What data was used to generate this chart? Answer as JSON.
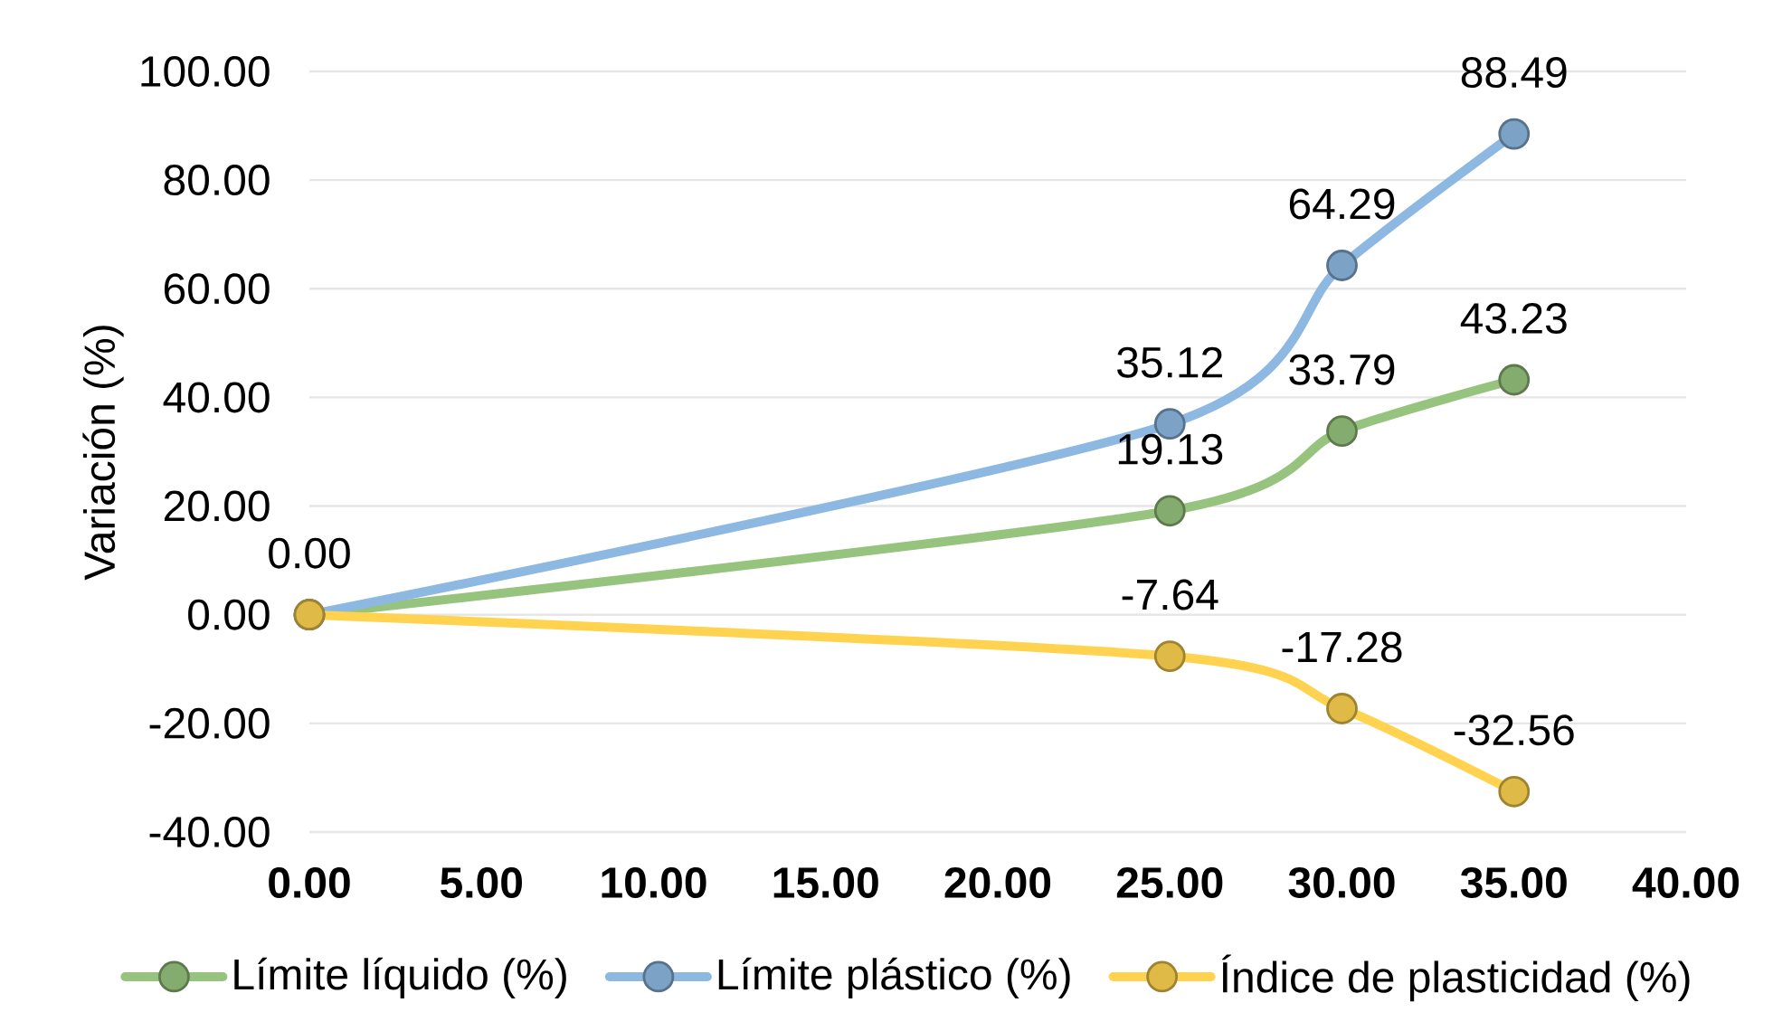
{
  "chart_data": {
    "type": "line",
    "ylabel": "Variación (%)",
    "x": [
      0,
      25,
      30,
      35
    ],
    "series": [
      {
        "name": "Límite líquido (%)",
        "color": "#96c37d",
        "values": [
          0,
          19.13,
          33.79,
          43.23
        ],
        "value_labels": [
          null,
          "19.13",
          "33.79",
          "43.23"
        ]
      },
      {
        "name": "Límite plástico (%)",
        "color": "#8db8e1",
        "values": [
          0,
          35.12,
          64.29,
          88.49
        ],
        "value_labels": [
          null,
          "35.12",
          "64.29",
          "88.49"
        ]
      },
      {
        "name": "Índice de plasticidad (%)",
        "color": "#ffd34f",
        "values": [
          0,
          -7.64,
          -17.28,
          -32.56
        ],
        "value_labels": [
          "0.00",
          "-7.64",
          "-17.28",
          "-32.56"
        ]
      }
    ],
    "xlim": [
      0,
      40
    ],
    "xticks": [
      {
        "value": 0,
        "label": "0.00"
      },
      {
        "value": 5,
        "label": "5.00"
      },
      {
        "value": 10,
        "label": "10.00"
      },
      {
        "value": 15,
        "label": "15.00"
      },
      {
        "value": 20,
        "label": "20.00"
      },
      {
        "value": 25,
        "label": "25.00"
      },
      {
        "value": 30,
        "label": "30.00"
      },
      {
        "value": 35,
        "label": "35.00"
      },
      {
        "value": 40,
        "label": "40.00"
      }
    ],
    "ylim": [
      -40,
      100
    ],
    "yticks": [
      {
        "value": -40,
        "label": "-40.00"
      },
      {
        "value": -20,
        "label": "-20.00"
      },
      {
        "value": 0,
        "label": "0.00"
      },
      {
        "value": 20,
        "label": "20.00"
      },
      {
        "value": 40,
        "label": "40.00"
      },
      {
        "value": 60,
        "label": "60.00"
      },
      {
        "value": 80,
        "label": "80.00"
      },
      {
        "value": 100,
        "label": "100.00"
      }
    ],
    "grid": "y",
    "legend": "bottom",
    "marker": "circle",
    "line_style": "solid"
  }
}
